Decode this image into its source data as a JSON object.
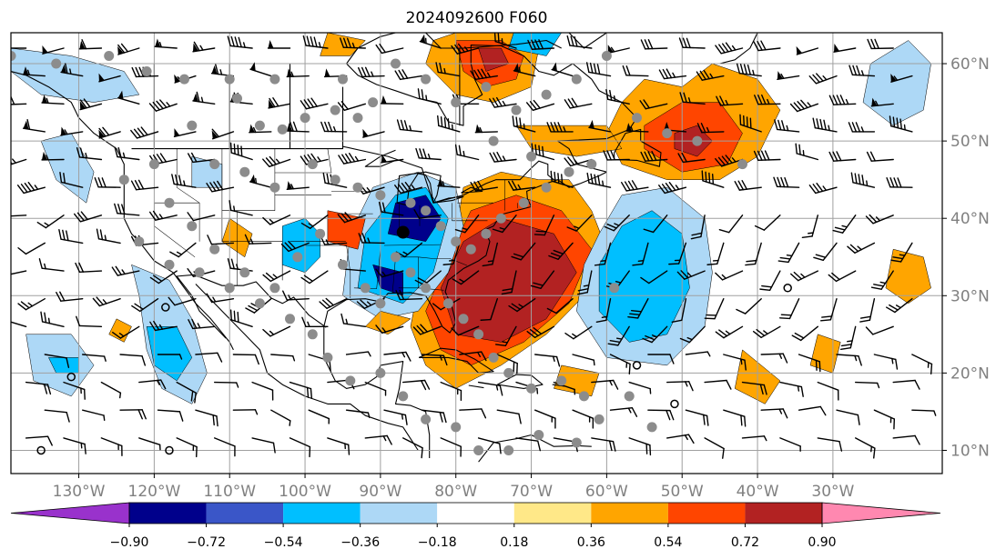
{
  "figure": {
    "title": "2024092600 F060"
  },
  "map": {
    "projection": "PlateCarree",
    "extent_lon": [
      -139,
      -15.5
    ],
    "extent_lat": [
      7,
      64
    ],
    "lon_ticks": [
      {
        "lon": -130,
        "label": "130°W"
      },
      {
        "lon": -120,
        "label": "120°W"
      },
      {
        "lon": -110,
        "label": "110°W"
      },
      {
        "lon": -100,
        "label": "100°W"
      },
      {
        "lon": -90,
        "label": "90°W"
      },
      {
        "lon": -80,
        "label": "80°W"
      },
      {
        "lon": -70,
        "label": "70°W"
      },
      {
        "lon": -60,
        "label": "60°W"
      },
      {
        "lon": -50,
        "label": "50°W"
      },
      {
        "lon": -40,
        "label": "40°W"
      },
      {
        "lon": -30,
        "label": "30°W"
      }
    ],
    "lat_ticks": [
      {
        "lat": 60,
        "label": "60°N"
      },
      {
        "lat": 50,
        "label": "50°N"
      },
      {
        "lat": 40,
        "label": "40°N"
      },
      {
        "lat": 30,
        "label": "30°N"
      },
      {
        "lat": 20,
        "label": "20°N"
      },
      {
        "lat": 10,
        "label": "10°N"
      }
    ],
    "gridlines": true,
    "layers": [
      "shaded field",
      "coastlines and borders",
      "wind barbs",
      "gray station dots"
    ]
  },
  "colorbar": {
    "orientation": "horizontal",
    "extend": "both",
    "levels": [
      -0.9,
      -0.72,
      -0.54,
      -0.36,
      -0.18,
      0.18,
      0.36,
      0.54,
      0.72,
      0.9
    ],
    "tick_labels": [
      "−0.90",
      "−0.72",
      "−0.54",
      "−0.36",
      "−0.18",
      "0.18",
      "0.36",
      "0.54",
      "0.72",
      "0.90"
    ],
    "colors": [
      "#9932cc",
      "#00008b",
      "#3a56c8",
      "#00bfff",
      "#add8f6",
      "#ffffff",
      "#ffe888",
      "#ffa500",
      "#ff4500",
      "#b22222",
      "#ff88b0"
    ]
  },
  "field_features": [
    {
      "kind": "positive",
      "level": 0.9,
      "lon": -77,
      "lat": 31,
      "note": "large red area off US east coast"
    },
    {
      "kind": "positive",
      "level": 0.72,
      "lon": -49,
      "lat": 50,
      "note": "red area over north Atlantic"
    },
    {
      "kind": "positive",
      "level": 0.72,
      "lon": -75,
      "lat": 61,
      "note": "red area near Hudson Strait"
    },
    {
      "kind": "negative",
      "level": -0.72,
      "lon": -86,
      "lat": 40,
      "note": "dark blue over Great Lakes"
    },
    {
      "kind": "negative",
      "level": -0.54,
      "lon": -55,
      "lat": 33,
      "note": "blue area over central Atlantic"
    },
    {
      "kind": "negative",
      "level": -0.54,
      "lon": -119,
      "lat": 22,
      "note": "blue band west of Baja"
    }
  ]
}
